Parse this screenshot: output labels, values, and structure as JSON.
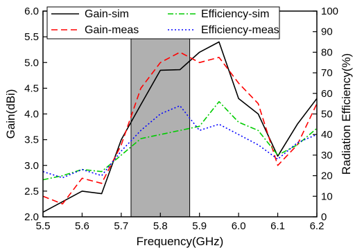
{
  "chart_data": {
    "type": "line",
    "xlabel": "Frequency(GHz)",
    "ylabel_left": "Gain(dBi)",
    "ylabel_right": "Radiation Efficiency(%)",
    "xlim": [
      5.5,
      6.2
    ],
    "ylim_left": [
      2.0,
      6.0
    ],
    "ylim_right": [
      0,
      100
    ],
    "x_ticks": [
      "5.5",
      "5.6",
      "5.7",
      "5.8",
      "5.9",
      "6.0",
      "6.1",
      "6.2"
    ],
    "y_left_ticks": [
      "2.0",
      "2.5",
      "3.0",
      "3.5",
      "4.0",
      "4.5",
      "5.0",
      "5.5",
      "6.0"
    ],
    "y_right_ticks": [
      "0",
      "10",
      "20",
      "30",
      "40",
      "50",
      "60",
      "70",
      "80",
      "90",
      "100"
    ],
    "shaded_band": {
      "x_start": 5.725,
      "x_end": 5.875,
      "color": "#b0b0b0"
    },
    "legend_position": "top",
    "series": [
      {
        "name": "Gain-sim",
        "axis": "left",
        "color": "#000000",
        "style": "solid",
        "x": [
          5.5,
          5.6,
          5.65,
          5.7,
          5.75,
          5.8,
          5.85,
          5.9,
          5.95,
          6.0,
          6.05,
          6.1,
          6.15,
          6.2
        ],
        "y": [
          2.09,
          2.5,
          2.45,
          3.5,
          4.18,
          4.85,
          4.86,
          5.2,
          5.4,
          4.3,
          4.0,
          3.18,
          3.8,
          4.3
        ]
      },
      {
        "name": "Gain-meas",
        "axis": "left",
        "color": "#ff0000",
        "style": "dashed",
        "x": [
          5.5,
          5.55,
          5.6,
          5.65,
          5.7,
          5.75,
          5.8,
          5.85,
          5.9,
          5.95,
          6.0,
          6.05,
          6.1,
          6.15,
          6.2
        ],
        "y": [
          2.4,
          2.25,
          2.75,
          2.65,
          3.4,
          4.5,
          5.0,
          5.2,
          5.0,
          5.1,
          4.6,
          4.2,
          3.0,
          3.4,
          4.2
        ]
      },
      {
        "name": "Efficiency-sim",
        "axis": "right",
        "color": "#00cc00",
        "style": "dashdot",
        "x": [
          5.5,
          5.55,
          5.6,
          5.65,
          5.7,
          5.75,
          5.8,
          5.85,
          5.9,
          5.95,
          6.0,
          6.05,
          6.1,
          6.15,
          6.2
        ],
        "y": [
          18,
          20,
          23,
          22,
          30,
          38,
          40,
          42,
          44,
          56,
          46,
          42,
          30,
          35,
          43
        ]
      },
      {
        "name": "Efficiency-meas",
        "axis": "right",
        "color": "#0000ff",
        "style": "dotted",
        "x": [
          5.5,
          5.55,
          5.6,
          5.65,
          5.7,
          5.75,
          5.8,
          5.85,
          5.9,
          5.95,
          6.0,
          6.05,
          6.1,
          6.15,
          6.2
        ],
        "y": [
          22,
          19,
          23,
          20,
          32,
          42,
          50,
          54,
          42,
          45,
          40,
          35,
          28,
          36,
          40
        ]
      }
    ]
  }
}
